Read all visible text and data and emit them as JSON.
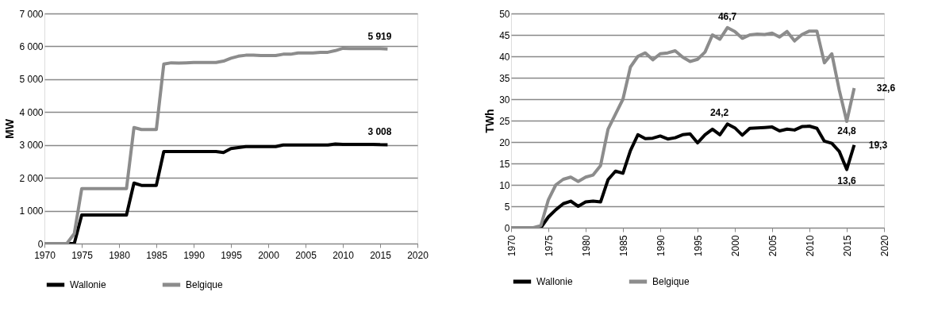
{
  "chart_data": [
    {
      "type": "line",
      "ylabel": "MW",
      "x": [
        1970,
        1971,
        1972,
        1973,
        1974,
        1975,
        1976,
        1977,
        1978,
        1979,
        1980,
        1981,
        1982,
        1983,
        1984,
        1985,
        1986,
        1987,
        1988,
        1989,
        1990,
        1991,
        1992,
        1993,
        1994,
        1995,
        1996,
        1997,
        1998,
        1999,
        2000,
        2001,
        2002,
        2003,
        2004,
        2005,
        2006,
        2007,
        2008,
        2009,
        2010,
        2011,
        2012,
        2013,
        2014,
        2015,
        2016
      ],
      "series": [
        {
          "name": "Wallonie",
          "color": "#000000",
          "values": [
            0,
            0,
            0,
            0,
            0,
            870,
            870,
            870,
            870,
            870,
            870,
            870,
            1840,
            1770,
            1770,
            1770,
            2800,
            2800,
            2800,
            2800,
            2800,
            2800,
            2800,
            2800,
            2770,
            2890,
            2920,
            2950,
            2950,
            2950,
            2950,
            2950,
            3000,
            3000,
            3000,
            3000,
            3000,
            3000,
            3000,
            3030,
            3020,
            3020,
            3020,
            3020,
            3020,
            3010,
            3008
          ]
        },
        {
          "name": "Belgique",
          "color": "#8c8c8c",
          "values": [
            0,
            0,
            0,
            0,
            300,
            1670,
            1670,
            1670,
            1670,
            1670,
            1670,
            1670,
            3530,
            3470,
            3470,
            3470,
            5460,
            5500,
            5490,
            5500,
            5510,
            5510,
            5510,
            5510,
            5550,
            5640,
            5700,
            5730,
            5730,
            5720,
            5720,
            5720,
            5760,
            5760,
            5800,
            5800,
            5800,
            5820,
            5820,
            5870,
            5940,
            5930,
            5930,
            5930,
            5930,
            5930,
            5919
          ]
        }
      ],
      "xlim": [
        1970,
        2020
      ],
      "xticks": [
        1970,
        1975,
        1980,
        1985,
        1990,
        1995,
        2000,
        2005,
        2010,
        2015,
        2020
      ],
      "ylim": [
        0,
        7000
      ],
      "yticks": [
        {
          "value": 0,
          "label": "0"
        },
        {
          "value": 1000,
          "label": "1 000"
        },
        {
          "value": 2000,
          "label": "2 000"
        },
        {
          "value": 3000,
          "label": "3 000"
        },
        {
          "value": 4000,
          "label": "4 000"
        },
        {
          "value": 5000,
          "label": "5 000"
        },
        {
          "value": 6000,
          "label": "6 000"
        },
        {
          "value": 7000,
          "label": "7 000"
        }
      ],
      "annotations": [
        {
          "text": "5 919",
          "x": 2016,
          "y": 5919
        },
        {
          "text": "3 008",
          "x": 2016,
          "y": 3008
        }
      ],
      "grid": "y",
      "legend": "bottom",
      "marker": "none",
      "line_style": "solid"
    },
    {
      "type": "line",
      "ylabel": "TWh",
      "x": [
        1970,
        1971,
        1972,
        1973,
        1974,
        1975,
        1976,
        1977,
        1978,
        1979,
        1980,
        1981,
        1982,
        1983,
        1984,
        1985,
        1986,
        1987,
        1988,
        1989,
        1990,
        1991,
        1992,
        1993,
        1994,
        1995,
        1996,
        1997,
        1998,
        1999,
        2000,
        2001,
        2002,
        2003,
        2004,
        2005,
        2006,
        2007,
        2008,
        2009,
        2010,
        2011,
        2012,
        2013,
        2014,
        2015,
        2016
      ],
      "series": [
        {
          "name": "Wallonie",
          "color": "#000000",
          "values": [
            0,
            0,
            0,
            0,
            0,
            2.5,
            4.2,
            5.6,
            6.2,
            5,
            6,
            6.2,
            6,
            11.2,
            13.2,
            12.7,
            18,
            21.7,
            20.8,
            20.9,
            21.4,
            20.7,
            21,
            21.7,
            21.9,
            19.8,
            21.7,
            23,
            21.7,
            24.2,
            23.3,
            21.6,
            23.2,
            23.3,
            23.4,
            23.5,
            22.6,
            23,
            22.8,
            23.6,
            23.7,
            23.2,
            20.2,
            19.7,
            17.8,
            13.6,
            19.3
          ]
        },
        {
          "name": "Belgique",
          "color": "#8c8c8c",
          "values": [
            0,
            0,
            0,
            0,
            0.5,
            6.5,
            10,
            11.3,
            11.8,
            10.8,
            11.8,
            12.3,
            14.5,
            23,
            26.5,
            30,
            37.5,
            40,
            40.8,
            39.2,
            40.6,
            40.8,
            41.3,
            39.8,
            38.8,
            39.3,
            41,
            45,
            44,
            46.7,
            45.8,
            44.2,
            45,
            45.2,
            45.1,
            45.4,
            44.5,
            45.8,
            43.6,
            45.1,
            45.9,
            45.9,
            38.5,
            40.6,
            32.1,
            24.8,
            32.6
          ]
        }
      ],
      "xlim": [
        1970,
        2020
      ],
      "xticks": [
        1970,
        1975,
        1980,
        1985,
        1990,
        1995,
        2000,
        2005,
        2010,
        2015,
        2020
      ],
      "ylim": [
        0,
        50
      ],
      "yticks": [
        0,
        5,
        10,
        15,
        20,
        25,
        30,
        35,
        40,
        45,
        50
      ],
      "annotations": [
        {
          "text": "46,7",
          "x": 1999,
          "y": 46.7
        },
        {
          "text": "24,2",
          "x": 1999,
          "y": 24.2
        },
        {
          "text": "24,8",
          "x": 2015,
          "y": 24.8
        },
        {
          "text": "32,6",
          "x": 2016,
          "y": 32.6
        },
        {
          "text": "19,3",
          "x": 2016,
          "y": 19.3
        },
        {
          "text": "13,6",
          "x": 2015,
          "y": 13.6
        }
      ],
      "grid": "y",
      "legend": "bottom",
      "marker": "none",
      "line_style": "solid"
    }
  ]
}
